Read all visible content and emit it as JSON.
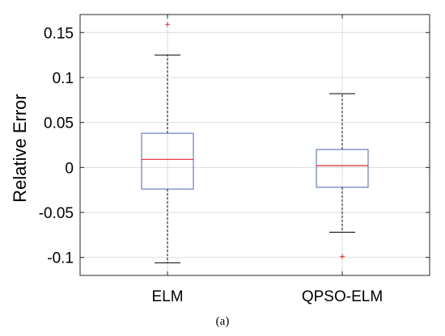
{
  "chart_data": {
    "type": "box",
    "title": "",
    "xlabel": "",
    "ylabel": "Relative Error",
    "ylim": [
      -0.12,
      0.17
    ],
    "grid": true,
    "y_ticks": [
      -0.1,
      -0.05,
      0,
      0.05,
      0.1,
      0.15
    ],
    "y_tick_labels": [
      "-0.1",
      "-0.05",
      "0",
      "0.05",
      "0.1",
      "0.15"
    ],
    "categories": [
      "ELM",
      "QPSO-ELM"
    ],
    "boxes": [
      {
        "name": "ELM",
        "whisker_low": -0.106,
        "q1": -0.024,
        "median": 0.009,
        "q3": 0.038,
        "whisker_high": 0.125,
        "outliers": [
          0.159
        ]
      },
      {
        "name": "QPSO-ELM",
        "whisker_low": -0.072,
        "q1": -0.022,
        "median": 0.002,
        "q3": 0.02,
        "whisker_high": 0.082,
        "outliers": [
          -0.099
        ]
      }
    ],
    "colors": {
      "box": "#4a63b8",
      "median": "#e0292b",
      "outlier": "#e0292b",
      "whisker": "#000000",
      "grid": "#dcdcdc"
    }
  },
  "caption": {
    "text": "(a)"
  }
}
